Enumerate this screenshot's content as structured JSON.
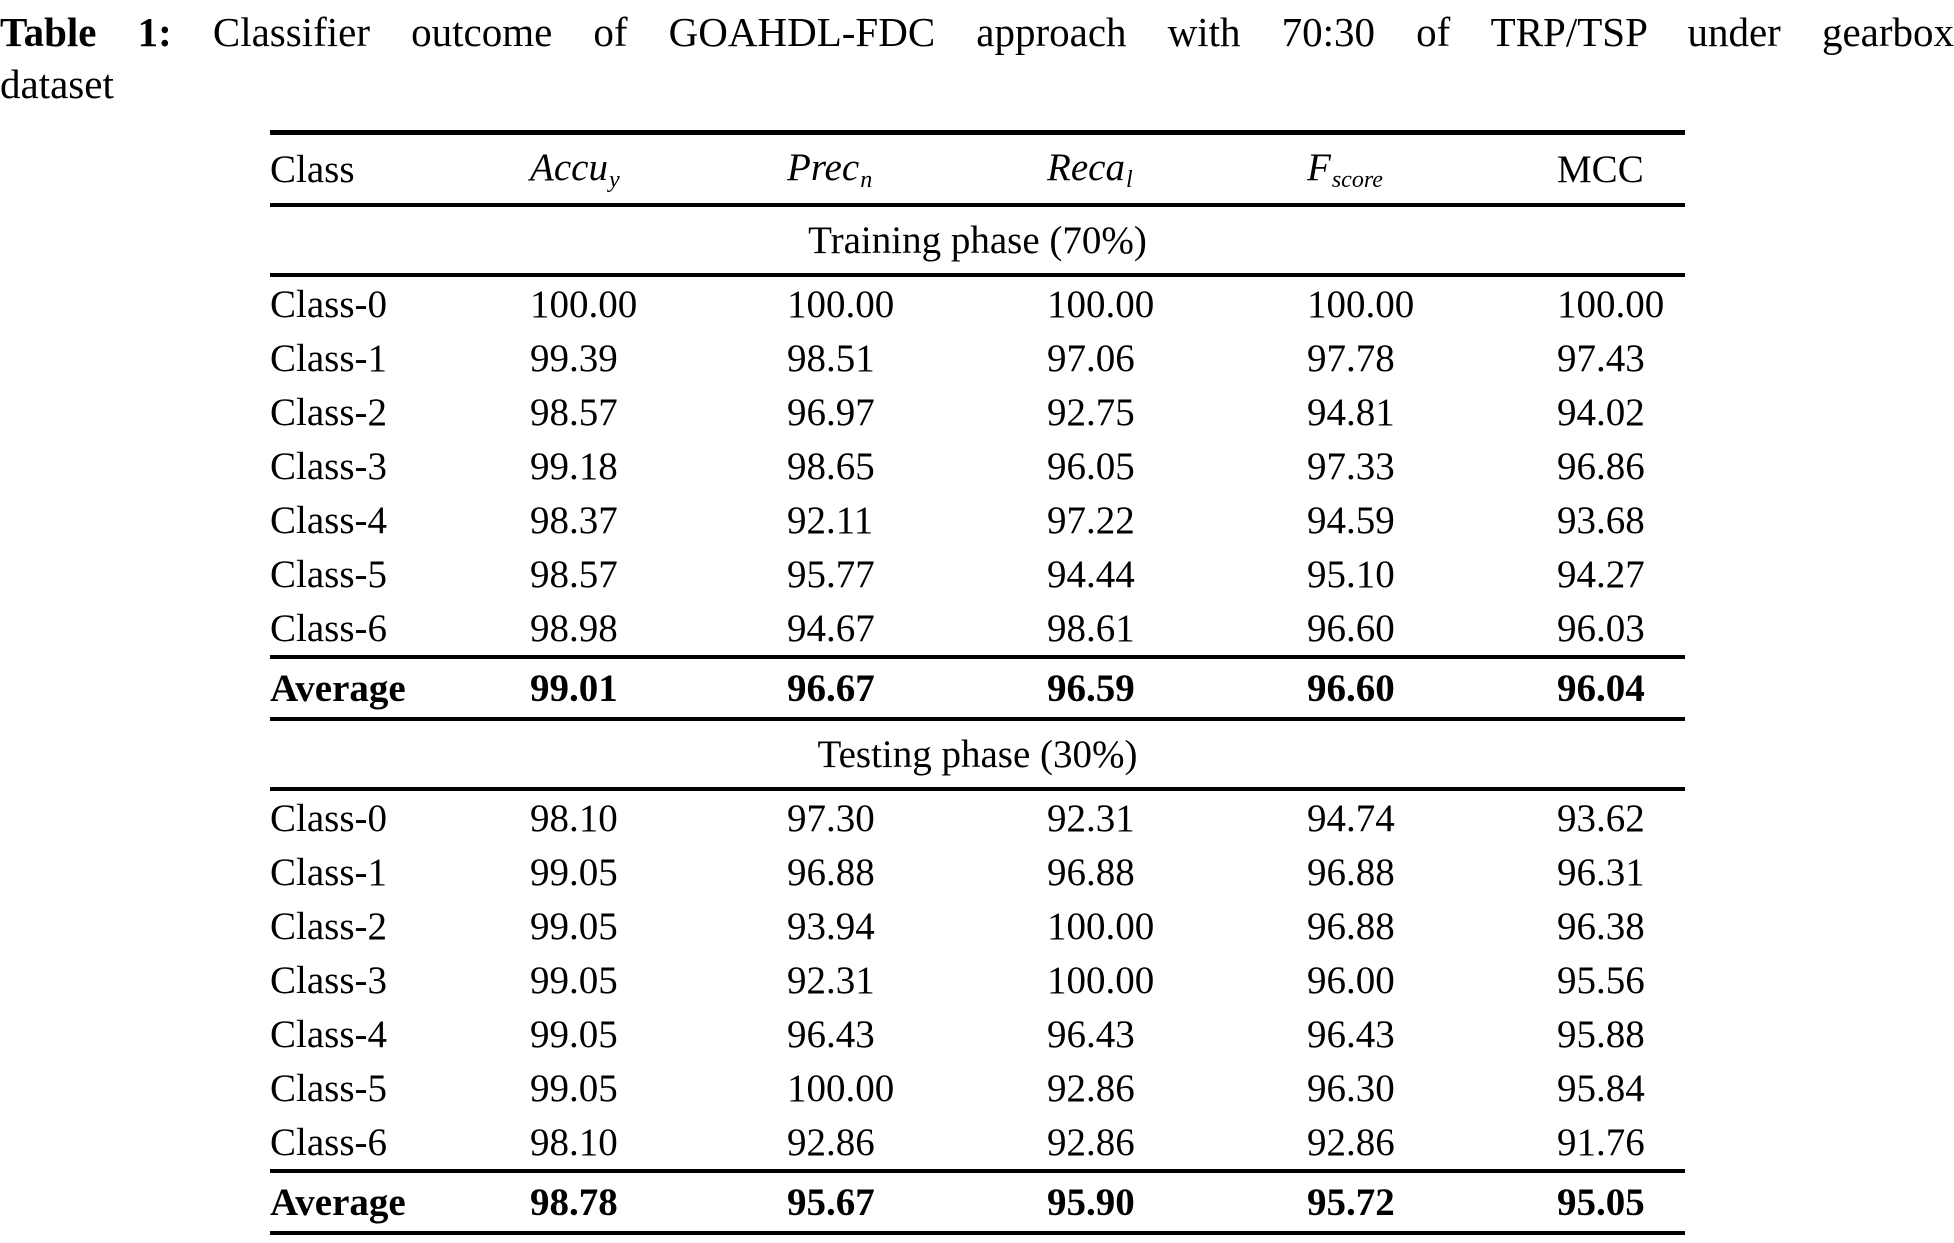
{
  "title": {
    "prefix": "Table 1:",
    "line1_rest": "Classifier outcome of GOAHDL-FDC approach with 70:30 of TRP/TSP under gearbox",
    "line2": "dataset"
  },
  "table": {
    "columns": [
      {
        "text": "Class",
        "sub": "",
        "italic": false
      },
      {
        "text": "Accu",
        "sub": "y",
        "italic": true
      },
      {
        "text": "Prec",
        "sub": "n",
        "italic": true
      },
      {
        "text": "Reca",
        "sub": "l",
        "italic": true
      },
      {
        "text": "F",
        "sub": "score",
        "italic": true
      },
      {
        "text": "MCC",
        "sub": "",
        "italic": false
      }
    ],
    "sections": [
      {
        "header": "Training phase (70%)",
        "rows": [
          [
            "Class-0",
            "100.00",
            "100.00",
            "100.00",
            "100.00",
            "100.00"
          ],
          [
            "Class-1",
            "99.39",
            "98.51",
            "97.06",
            "97.78",
            "97.43"
          ],
          [
            "Class-2",
            "98.57",
            "96.97",
            "92.75",
            "94.81",
            "94.02"
          ],
          [
            "Class-3",
            "99.18",
            "98.65",
            "96.05",
            "97.33",
            "96.86"
          ],
          [
            "Class-4",
            "98.37",
            "92.11",
            "97.22",
            "94.59",
            "93.68"
          ],
          [
            "Class-5",
            "98.57",
            "95.77",
            "94.44",
            "95.10",
            "94.27"
          ],
          [
            "Class-6",
            "98.98",
            "94.67",
            "98.61",
            "96.60",
            "96.03"
          ]
        ],
        "average": [
          "Average",
          "99.01",
          "96.67",
          "96.59",
          "96.60",
          "96.04"
        ]
      },
      {
        "header": "Testing phase (30%)",
        "rows": [
          [
            "Class-0",
            "98.10",
            "97.30",
            "92.31",
            "94.74",
            "93.62"
          ],
          [
            "Class-1",
            "99.05",
            "96.88",
            "96.88",
            "96.88",
            "96.31"
          ],
          [
            "Class-2",
            "99.05",
            "93.94",
            "100.00",
            "96.88",
            "96.38"
          ],
          [
            "Class-3",
            "99.05",
            "92.31",
            "100.00",
            "96.00",
            "95.56"
          ],
          [
            "Class-4",
            "99.05",
            "96.43",
            "96.43",
            "96.43",
            "95.88"
          ],
          [
            "Class-5",
            "99.05",
            "100.00",
            "92.86",
            "96.30",
            "95.84"
          ],
          [
            "Class-6",
            "98.10",
            "92.86",
            "92.86",
            "92.86",
            "91.76"
          ]
        ],
        "average": [
          "Average",
          "98.78",
          "95.67",
          "95.90",
          "95.72",
          "95.05"
        ]
      }
    ]
  }
}
